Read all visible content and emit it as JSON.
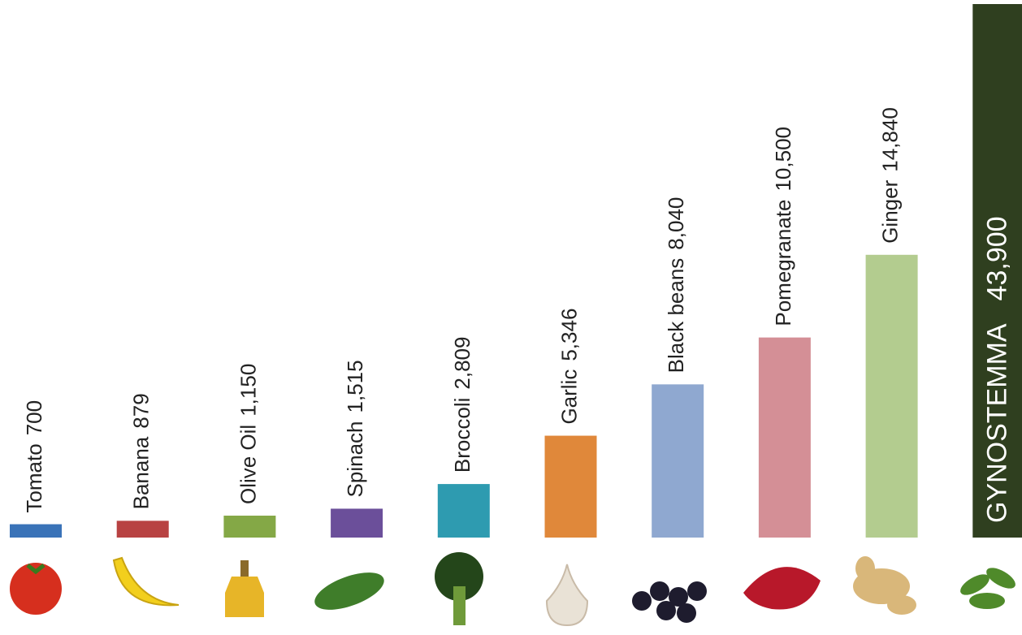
{
  "chart_data": {
    "type": "bar",
    "categories": [
      "Tomato",
      "Banana",
      "Olive Oil",
      "Spinach",
      "Broccoli",
      "Garlic",
      "Black beans",
      "Pomegranate",
      "Ginger",
      "GYNOSTEMMA"
    ],
    "values": [
      700,
      879,
      1150,
      1515,
      2809,
      5346,
      8040,
      10500,
      14840,
      43900
    ],
    "value_labels": [
      "700",
      "879",
      "1,150",
      "1,515",
      "2,809",
      "5,346",
      "8,040",
      "10,500",
      "14,840",
      "43,900"
    ],
    "colors": [
      "#3a73b8",
      "#b84242",
      "#84a846",
      "#6b4f9a",
      "#2e9bb0",
      "#e0883a",
      "#8fa8d0",
      "#d48f96",
      "#b3cc8f",
      "#2f3f1f"
    ],
    "ylim": [
      0,
      28000
    ]
  }
}
